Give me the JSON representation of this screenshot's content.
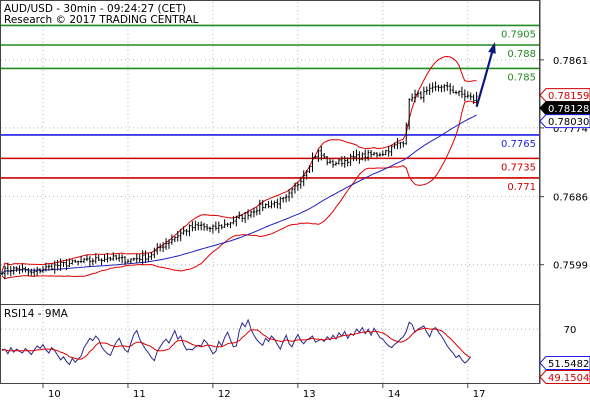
{
  "header": {
    "title": "AUD/USD - 30min - 09:24:27 (CET)",
    "subtitle": "Research © 2017 TRADING CENTRAL"
  },
  "indicator": {
    "label": "RSI14 - 9MA"
  },
  "colors": {
    "resistance": "#228b22",
    "pivot": "#1e1ee6",
    "support": "#d00000",
    "candles": "#000000",
    "bollinger": "#e00000",
    "ma": "#2020c0",
    "arrow": "#0a1a7a",
    "rsi_line": "#2a2a8a",
    "rsi_ma": "#e00000",
    "grid": "#b4b4b4"
  },
  "chart_data": [
    {
      "type": "candlestick",
      "ylim": [
        0.755,
        0.7935
      ],
      "xlabel": "",
      "ylabel": "",
      "grid": true,
      "y_ticks": [
        "0.7861",
        "0.7774",
        "0.7686",
        "0.7599"
      ],
      "x_ticks": [
        "10",
        "11",
        "12",
        "13",
        "14",
        "17"
      ],
      "levels": [
        {
          "value": 0.7905,
          "label": "0.7905",
          "kind": "resistance"
        },
        {
          "value": 0.788,
          "label": "0.788",
          "kind": "resistance"
        },
        {
          "value": 0.785,
          "label": "0.785",
          "kind": "resistance"
        },
        {
          "value": 0.7765,
          "label": "0.7765",
          "kind": "pivot"
        },
        {
          "value": 0.7735,
          "label": "0.7735",
          "kind": "support"
        },
        {
          "value": 0.771,
          "label": "0.771",
          "kind": "support"
        }
      ],
      "price_tags": [
        {
          "value": 0.78159,
          "label": "0.78159",
          "style": "red"
        },
        {
          "value": 0.78128,
          "label": "0.78128",
          "style": "black"
        },
        {
          "value": 0.7803,
          "label": "0.78030",
          "style": "blue"
        }
      ],
      "trend_path": [
        {
          "t": 0,
          "v": 0.7591
        },
        {
          "t": 3,
          "v": 0.7593
        },
        {
          "t": 6,
          "v": 0.7594
        },
        {
          "t": 10,
          "v": 0.7588
        },
        {
          "t": 14,
          "v": 0.7594
        },
        {
          "t": 20,
          "v": 0.7599
        },
        {
          "t": 28,
          "v": 0.7603
        },
        {
          "t": 36,
          "v": 0.7608
        },
        {
          "t": 43,
          "v": 0.7605
        },
        {
          "t": 50,
          "v": 0.761
        },
        {
          "t": 55,
          "v": 0.7624
        },
        {
          "t": 60,
          "v": 0.7637
        },
        {
          "t": 64,
          "v": 0.7646
        },
        {
          "t": 68,
          "v": 0.7649
        },
        {
          "t": 71,
          "v": 0.7644
        },
        {
          "t": 76,
          "v": 0.765
        },
        {
          "t": 82,
          "v": 0.7661
        },
        {
          "t": 88,
          "v": 0.7673
        },
        {
          "t": 93,
          "v": 0.7678
        },
        {
          "t": 97,
          "v": 0.7683
        },
        {
          "t": 101,
          "v": 0.7703
        },
        {
          "t": 104,
          "v": 0.7721
        },
        {
          "t": 106,
          "v": 0.7735
        },
        {
          "t": 108,
          "v": 0.7743
        },
        {
          "t": 112,
          "v": 0.7728
        },
        {
          "t": 116,
          "v": 0.7731
        },
        {
          "t": 120,
          "v": 0.7736
        },
        {
          "t": 125,
          "v": 0.7739
        },
        {
          "t": 130,
          "v": 0.7742
        },
        {
          "t": 134,
          "v": 0.7751
        },
        {
          "t": 137,
          "v": 0.7757
        },
        {
          "t": 138,
          "v": 0.778
        },
        {
          "t": 139,
          "v": 0.7807
        },
        {
          "t": 140,
          "v": 0.7815
        },
        {
          "t": 143,
          "v": 0.7816
        },
        {
          "t": 147,
          "v": 0.7823
        },
        {
          "t": 150,
          "v": 0.7828
        },
        {
          "t": 153,
          "v": 0.7823
        },
        {
          "t": 156,
          "v": 0.7818
        },
        {
          "t": 159,
          "v": 0.7814
        },
        {
          "t": 161,
          "v": 0.781
        },
        {
          "t": 162,
          "v": 0.7813
        }
      ],
      "forecast_arrow": [
        {
          "t": 162,
          "v": 0.7801
        },
        {
          "t": 165,
          "v": 0.784
        },
        {
          "t": 168,
          "v": 0.788
        }
      ]
    },
    {
      "type": "line",
      "ylim": [
        0,
        100
      ],
      "y_ticks": [
        "70"
      ],
      "value_tags": [
        {
          "label": "51.5482",
          "style": "blue"
        },
        {
          "label": "49.1504",
          "style": "red"
        }
      ],
      "series": [
        {
          "role": "rsi",
          "values": [
            42,
            44,
            38,
            46,
            40,
            44,
            41,
            39,
            45,
            41,
            37,
            43,
            48,
            45,
            50,
            43,
            39,
            46,
            42,
            36,
            30,
            34,
            28,
            24,
            32,
            27,
            31,
            35,
            46,
            52,
            58,
            55,
            61,
            57,
            47,
            42,
            38,
            36,
            45,
            53,
            58,
            49,
            43,
            40,
            52,
            63,
            68,
            57,
            50,
            44,
            39,
            33,
            29,
            41,
            47,
            53,
            57,
            52,
            60,
            68,
            57,
            61,
            50,
            43,
            44,
            43,
            47,
            49,
            48,
            56,
            52,
            45,
            38,
            41,
            54,
            48,
            59,
            66,
            56,
            47,
            48,
            68,
            78,
            73,
            82,
            70,
            62,
            56,
            52,
            49,
            58,
            54,
            61,
            57,
            50,
            44,
            54,
            62,
            51,
            47,
            56,
            63,
            55,
            51,
            56,
            58,
            61,
            53,
            55,
            57,
            54,
            60,
            56,
            62,
            57,
            65,
            61,
            67,
            58,
            64,
            62,
            70,
            66,
            72,
            64,
            70,
            62,
            71,
            65,
            59,
            57,
            52,
            48,
            46,
            50,
            53,
            57,
            60,
            67,
            79,
            76,
            66,
            70,
            72,
            74,
            66,
            60,
            70,
            72,
            66,
            61,
            55,
            48,
            43,
            39,
            33,
            36,
            30,
            26,
            29,
            34
          ]
        },
        {
          "role": "rsi_ma",
          "values": [
            44,
            43,
            42,
            42,
            42,
            42,
            42,
            42,
            42,
            42,
            42,
            42,
            43,
            43,
            44,
            44,
            44,
            44,
            43,
            42,
            40,
            39,
            37,
            34,
            33,
            32,
            31,
            31,
            33,
            36,
            41,
            44,
            49,
            52,
            52,
            52,
            51,
            49,
            48,
            47,
            48,
            48,
            48,
            47,
            48,
            51,
            53,
            53,
            52,
            50,
            49,
            47,
            44,
            42,
            42,
            42,
            43,
            44,
            48,
            52,
            55,
            55,
            55,
            54,
            52,
            50,
            49,
            48,
            47,
            48,
            49,
            49,
            48,
            47,
            47,
            47,
            49,
            51,
            52,
            52,
            53,
            55,
            59,
            62,
            66,
            69,
            69,
            69,
            67,
            63,
            61,
            58,
            57,
            56,
            55,
            54,
            54,
            56,
            55,
            54,
            55,
            56,
            56,
            56,
            56,
            57,
            58,
            57,
            57,
            56,
            56,
            57,
            57,
            58,
            58,
            60,
            61,
            62,
            62,
            63,
            63,
            64,
            65,
            66,
            66,
            67,
            66,
            67,
            67,
            66,
            65,
            63,
            60,
            57,
            55,
            54,
            53,
            54,
            56,
            59,
            63,
            67,
            69,
            70,
            71,
            71,
            70,
            70,
            70,
            69,
            68,
            65,
            61,
            58,
            54,
            50,
            46,
            42,
            38,
            35,
            33
          ]
        }
      ]
    }
  ]
}
